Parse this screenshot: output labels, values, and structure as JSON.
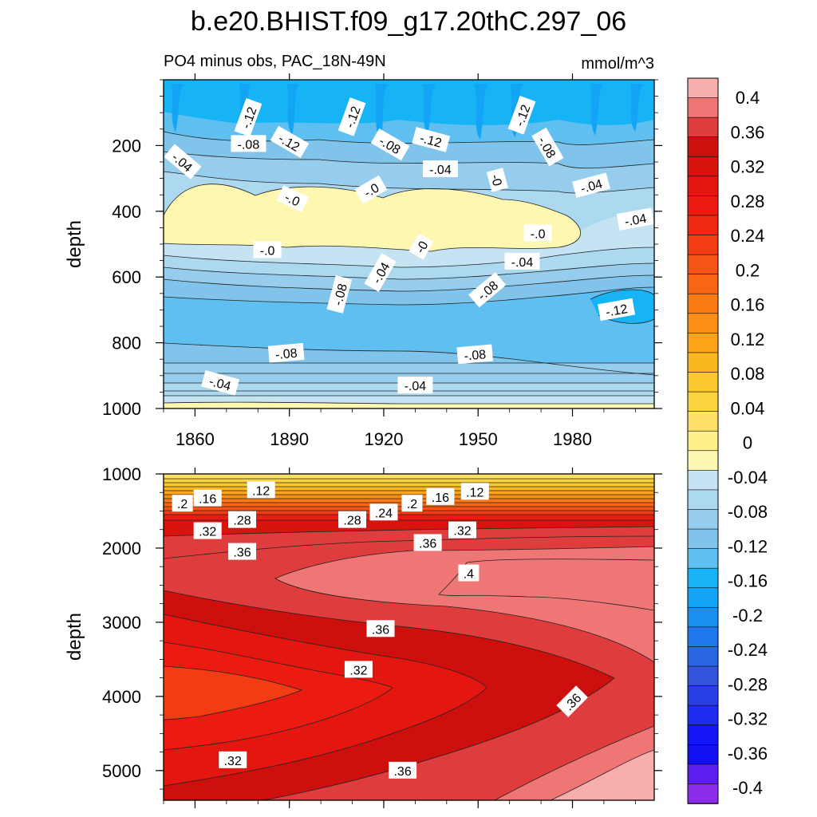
{
  "title": "b.e20.BHIST.f09_g17.20thC.297_06",
  "subtitle_left": "PO4 minus obs, PAC_18N-49N",
  "subtitle_right": "mmol/m^3",
  "colors": {
    "levels_neg": [
      "#c5e3f2",
      "#acd9f0",
      "#96ccec",
      "#80c4eb",
      "#5ebff0",
      "#17b4f5",
      "#13a4f5",
      "#1890f0",
      "#1f79ec",
      "#2866e2",
      "#3453da",
      "#2a3ee6",
      "#1f2cf0",
      "#1416f5",
      "#1010f0",
      "#5c1ef0",
      "#8a2ce8"
    ],
    "levels_pos": [
      "#fdf7b2",
      "#fdef8a",
      "#fde067",
      "#fcd442",
      "#fcc82e",
      "#fbb71f",
      "#fca318",
      "#fb8f15",
      "#fa7a14",
      "#f86614",
      "#f65316",
      "#f23d14",
      "#ef2a12",
      "#ec1b12",
      "#e41610",
      "#d9140f",
      "#cd100e",
      "#df3d3d",
      "#f07676",
      "#f9aeae"
    ]
  },
  "chart_data": [
    {
      "type": "contour",
      "name": "upper-panel",
      "xlabel": "",
      "ylabel": "depth",
      "xlim": [
        1850,
        2006
      ],
      "ylim": [
        1000,
        0
      ],
      "xticks": [
        1860,
        1890,
        1920,
        1950,
        1980
      ],
      "yticks": [
        200,
        400,
        600,
        800,
        1000
      ],
      "contour_labels": [
        {
          "x": 1877,
          "y": 115,
          "text": "-.12",
          "angle": -70
        },
        {
          "x": 1910,
          "y": 113,
          "text": "-.12",
          "angle": -70
        },
        {
          "x": 1964,
          "y": 108,
          "text": "-.12",
          "angle": -70
        },
        {
          "x": 1877,
          "y": 195,
          "text": "-.08",
          "angle": 0
        },
        {
          "x": 1890,
          "y": 190,
          "text": "-.12",
          "angle": 30
        },
        {
          "x": 1922,
          "y": 198,
          "text": "-.08",
          "angle": 30
        },
        {
          "x": 1935,
          "y": 183,
          "text": "-.12",
          "angle": 15
        },
        {
          "x": 1972,
          "y": 205,
          "text": "-.08",
          "angle": 60
        },
        {
          "x": 1856,
          "y": 250,
          "text": "-.04",
          "angle": 40
        },
        {
          "x": 1938,
          "y": 272,
          "text": "-.04",
          "angle": 0
        },
        {
          "x": 1956,
          "y": 305,
          "text": "-0",
          "angle": 75
        },
        {
          "x": 1986,
          "y": 322,
          "text": "-.04",
          "angle": -15
        },
        {
          "x": 1891,
          "y": 363,
          "text": "-.0",
          "angle": 25
        },
        {
          "x": 1916,
          "y": 335,
          "text": "-.0",
          "angle": -30
        },
        {
          "x": 2000,
          "y": 425,
          "text": "-.04",
          "angle": -10
        },
        {
          "x": 1969,
          "y": 467,
          "text": "-.0",
          "angle": 0
        },
        {
          "x": 1932,
          "y": 508,
          "text": "-0",
          "angle": -60
        },
        {
          "x": 1883,
          "y": 518,
          "text": "-.0",
          "angle": 0
        },
        {
          "x": 1964,
          "y": 553,
          "text": "-.04",
          "angle": 0
        },
        {
          "x": 1919,
          "y": 587,
          "text": "-.04",
          "angle": -60
        },
        {
          "x": 1953,
          "y": 640,
          "text": "-.08",
          "angle": -40
        },
        {
          "x": 1906,
          "y": 653,
          "text": "-.08",
          "angle": -75
        },
        {
          "x": 1994,
          "y": 700,
          "text": "-.12",
          "angle": -10
        },
        {
          "x": 1889,
          "y": 832,
          "text": "-.08",
          "angle": -5
        },
        {
          "x": 1949,
          "y": 836,
          "text": "-.08",
          "angle": -5
        },
        {
          "x": 1868,
          "y": 923,
          "text": "-.04",
          "angle": 15
        },
        {
          "x": 1930,
          "y": 930,
          "text": "-.04",
          "angle": 0
        }
      ]
    },
    {
      "type": "contour",
      "name": "lower-panel",
      "xlabel": "",
      "ylabel": "depth",
      "xlim": [
        1850,
        2006
      ],
      "ylim": [
        5400,
        1000
      ],
      "xticks": [
        1860,
        1890,
        1920,
        1950,
        1980
      ],
      "yticks": [
        1000,
        2000,
        3000,
        4000,
        5000
      ],
      "contour_labels": [
        {
          "x": 1856,
          "y": 1400,
          "text": ".2",
          "angle": 0
        },
        {
          "x": 1864,
          "y": 1330,
          "text": ".16",
          "angle": 0
        },
        {
          "x": 1881,
          "y": 1220,
          "text": ".12",
          "angle": 0
        },
        {
          "x": 1864,
          "y": 1770,
          "text": ".32",
          "angle": 0
        },
        {
          "x": 1875,
          "y": 1620,
          "text": ".28",
          "angle": 0
        },
        {
          "x": 1875,
          "y": 2050,
          "text": ".36",
          "angle": 0
        },
        {
          "x": 1910,
          "y": 1620,
          "text": ".28",
          "angle": 0
        },
        {
          "x": 1920,
          "y": 1520,
          "text": ".24",
          "angle": 0
        },
        {
          "x": 1929,
          "y": 1400,
          "text": ".2",
          "angle": 0
        },
        {
          "x": 1938,
          "y": 1310,
          "text": ".16",
          "angle": 0
        },
        {
          "x": 1949,
          "y": 1240,
          "text": ".12",
          "angle": 0
        },
        {
          "x": 1945,
          "y": 1760,
          "text": ".32",
          "angle": 0
        },
        {
          "x": 1934,
          "y": 1930,
          "text": ".36",
          "angle": 0
        },
        {
          "x": 1947,
          "y": 2340,
          "text": ".4",
          "angle": 0
        },
        {
          "x": 1919,
          "y": 3090,
          "text": ".36",
          "angle": 0
        },
        {
          "x": 1912,
          "y": 3640,
          "text": ".32",
          "angle": 0
        },
        {
          "x": 1980,
          "y": 4070,
          "text": ".36",
          "angle": -45
        },
        {
          "x": 1872,
          "y": 4860,
          "text": ".32",
          "angle": 0
        },
        {
          "x": 1926,
          "y": 5000,
          "text": ".36",
          "angle": 0
        }
      ]
    }
  ],
  "colorbar": {
    "labels": [
      "0.4",
      "0.36",
      "0.32",
      "0.28",
      "0.24",
      "0.2",
      "0.16",
      "0.12",
      "0.08",
      "0.04",
      "0",
      "-0.04",
      "-0.08",
      "-0.12",
      "-0.16",
      "-0.2",
      "-0.24",
      "-0.28",
      "-0.32",
      "-0.36",
      "-0.4"
    ]
  }
}
